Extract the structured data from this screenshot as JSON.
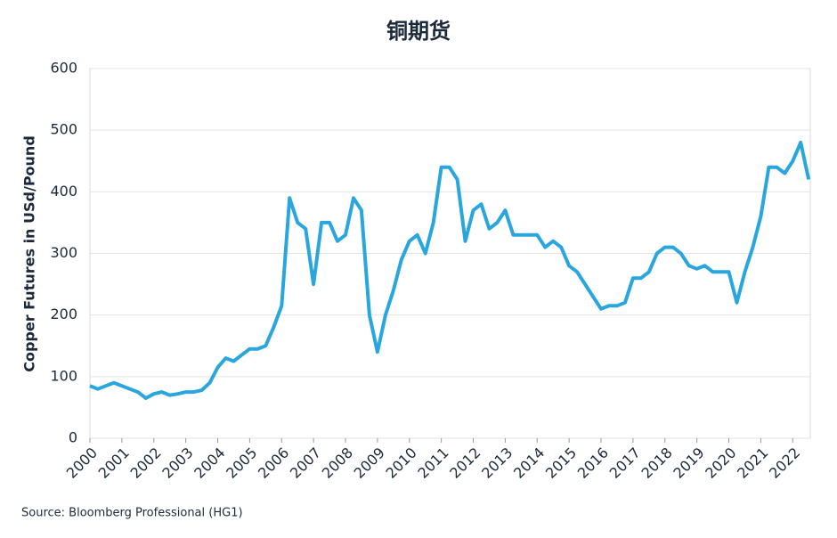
{
  "chart_data": {
    "type": "line",
    "title": "铜期货",
    "ylabel": "Copper Futures in USd/Pound",
    "source": "Source: Bloomberg Professional (HG1)",
    "x": [
      2000,
      2000.25,
      2000.5,
      2000.75,
      2001,
      2001.25,
      2001.5,
      2001.75,
      2002,
      2002.25,
      2002.5,
      2002.75,
      2003,
      2003.25,
      2003.5,
      2003.75,
      2004,
      2004.25,
      2004.5,
      2004.75,
      2005,
      2005.25,
      2005.5,
      2005.75,
      2006,
      2006.25,
      2006.5,
      2006.75,
      2007,
      2007.25,
      2007.5,
      2007.75,
      2008,
      2008.25,
      2008.5,
      2008.75,
      2009,
      2009.25,
      2009.5,
      2009.75,
      2010,
      2010.25,
      2010.5,
      2010.75,
      2011,
      2011.25,
      2011.5,
      2011.75,
      2012,
      2012.25,
      2012.5,
      2012.75,
      2013,
      2013.25,
      2013.5,
      2013.75,
      2014,
      2014.25,
      2014.5,
      2014.75,
      2015,
      2015.25,
      2015.5,
      2015.75,
      2016,
      2016.25,
      2016.5,
      2016.75,
      2017,
      2017.25,
      2017.5,
      2017.75,
      2018,
      2018.25,
      2018.5,
      2018.75,
      2019,
      2019.25,
      2019.5,
      2019.75,
      2020,
      2020.25,
      2020.5,
      2020.75,
      2021,
      2021.25,
      2021.5,
      2021.75,
      2022,
      2022.25,
      2022.5
    ],
    "series": [
      {
        "name": "HG1",
        "color": "#2aa6df",
        "values": [
          85,
          80,
          85,
          90,
          85,
          80,
          75,
          65,
          72,
          75,
          70,
          72,
          75,
          75,
          78,
          90,
          115,
          130,
          125,
          135,
          145,
          145,
          150,
          180,
          215,
          390,
          350,
          340,
          250,
          350,
          350,
          320,
          330,
          390,
          370,
          200,
          140,
          200,
          240,
          290,
          320,
          330,
          300,
          350,
          440,
          440,
          420,
          320,
          370,
          380,
          340,
          350,
          370,
          330,
          330,
          330,
          330,
          310,
          320,
          310,
          280,
          270,
          250,
          230,
          210,
          215,
          215,
          220,
          260,
          260,
          270,
          300,
          310,
          310,
          300,
          280,
          275,
          280,
          270,
          270,
          270,
          220,
          270,
          310,
          360,
          440,
          440,
          430,
          450,
          480,
          420
        ]
      }
    ],
    "xlim": [
      2000,
      2022.55
    ],
    "xticks": [
      2000,
      2001,
      2002,
      2003,
      2004,
      2005,
      2006,
      2007,
      2008,
      2009,
      2010,
      2011,
      2012,
      2013,
      2014,
      2015,
      2016,
      2017,
      2018,
      2019,
      2020,
      2021,
      2022
    ],
    "ylim": [
      0,
      600
    ],
    "yticks": [
      0,
      100,
      200,
      300,
      400,
      500,
      600
    ],
    "grid": true
  }
}
